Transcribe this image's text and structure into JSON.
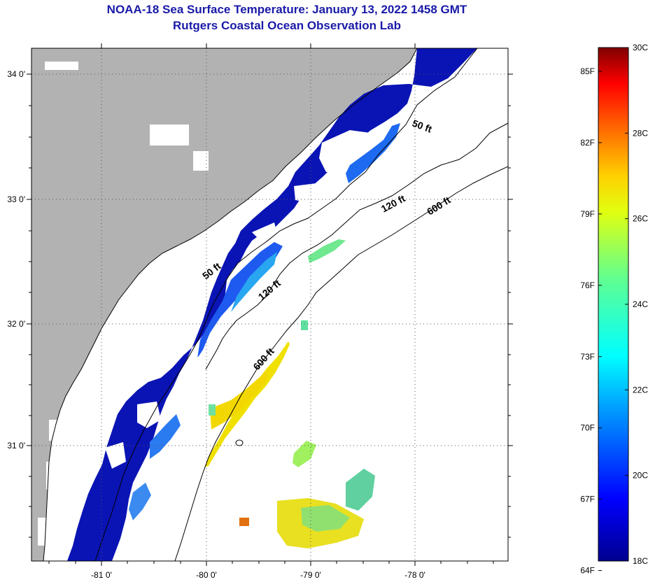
{
  "title": {
    "line1": "NOAA-18 Sea Surface Temperature:  January 13, 2022 1458 GMT",
    "line2": "Rutgers Coastal Ocean Observation Lab"
  },
  "lat_labels": [
    "34 0'",
    "33 0'",
    "32 0'",
    "31 0'"
  ],
  "lon_labels": [
    "-81 0'",
    "-80 0'",
    "-79 0'",
    "-78 0'"
  ],
  "contour_labels": {
    "c50_north": "50 ft",
    "c50_south": "50 ft",
    "c120_north": "120 ft",
    "c120_south": "120 ft",
    "c600_north": "600 ft",
    "c600_south": "600 ft"
  },
  "colorbar": {
    "fahrenheit": [
      "85F",
      "82F",
      "79F",
      "76F",
      "73F",
      "70F",
      "67F",
      "64F"
    ],
    "celsius": [
      "30C",
      "28C",
      "26C",
      "24C",
      "22C",
      "20C",
      "18C"
    ],
    "min_c": 18,
    "max_c": 30
  },
  "colors": {
    "land": "#b2b2b2",
    "cloud": "#ffffff",
    "title": "#1a1aa8"
  }
}
